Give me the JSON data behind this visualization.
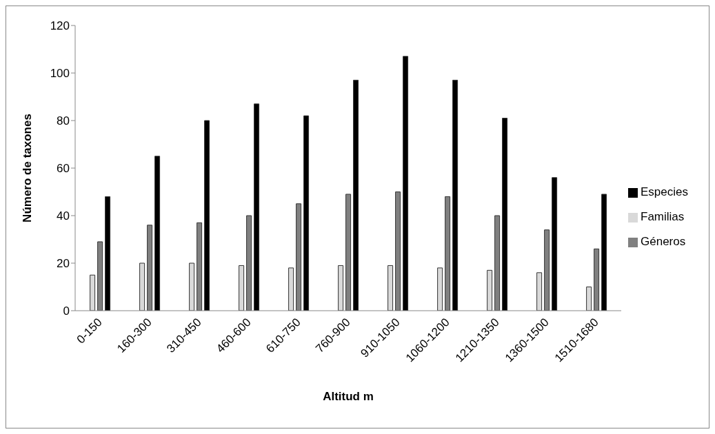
{
  "chart_data": {
    "type": "bar",
    "xlabel": "Altitud m",
    "ylabel": "Número de taxones",
    "categories": [
      "0-150",
      "160-300",
      "310-450",
      "460-600",
      "610-750",
      "760-900",
      "910-1050",
      "1060-1200",
      "1210-1350",
      "1360-1500",
      "1510-1680"
    ],
    "series": [
      {
        "name": "Familias",
        "color": "#d9d9d9",
        "values": [
          15,
          20,
          20,
          19,
          18,
          19,
          19,
          18,
          17,
          16,
          10
        ]
      },
      {
        "name": "Géneros",
        "color": "#808080",
        "values": [
          29,
          36,
          37,
          40,
          45,
          49,
          50,
          48,
          40,
          34,
          26
        ]
      },
      {
        "name": "Especies",
        "color": "#000000",
        "values": [
          48,
          65,
          80,
          87,
          82,
          97,
          107,
          97,
          81,
          56,
          49
        ]
      }
    ],
    "ylim": [
      0,
      120
    ],
    "yticks": [
      0,
      20,
      40,
      60,
      80,
      100,
      120
    ],
    "grid": false,
    "legend": "right"
  }
}
